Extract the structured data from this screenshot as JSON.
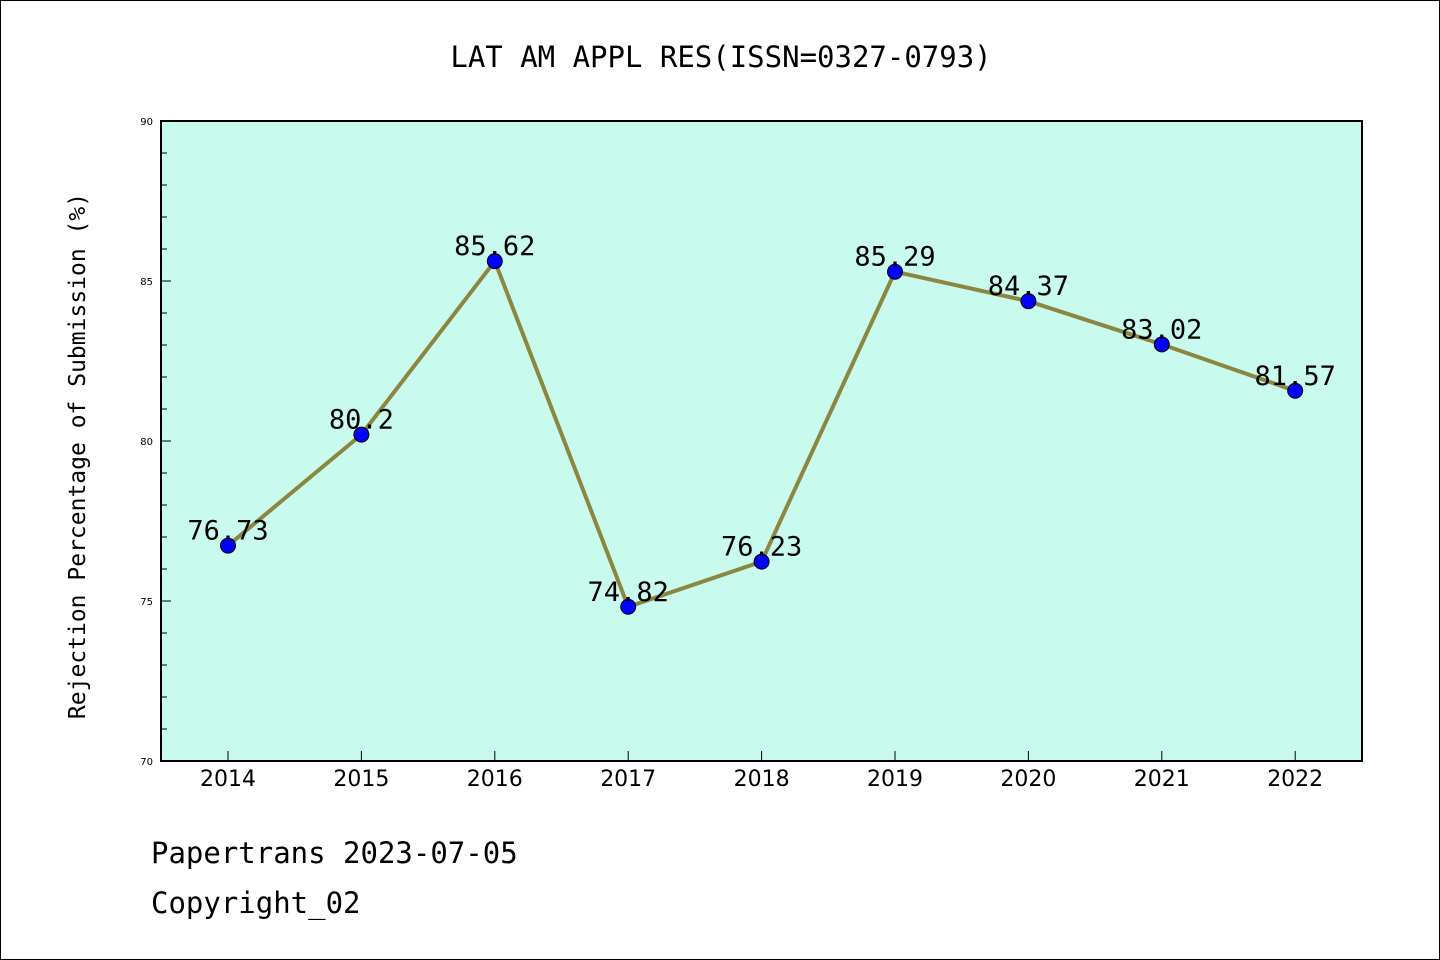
{
  "chart_data": {
    "type": "line",
    "title": "LAT AM APPL RES(ISSN=0327-0793)",
    "xlabel": "",
    "ylabel": "Rejection Percentage of Submission (%)",
    "categories": [
      "2014",
      "2015",
      "2016",
      "2017",
      "2018",
      "2019",
      "2020",
      "2021",
      "2022"
    ],
    "series": [
      {
        "values": [
          76.73,
          80.2,
          85.62,
          74.82,
          76.23,
          85.29,
          84.37,
          83.02,
          81.57
        ],
        "labels": [
          "76.73",
          "80.2",
          "85.62",
          "74.82",
          "76.23",
          "85.29",
          "84.37",
          "83.02",
          "81.57"
        ]
      }
    ],
    "ylim": [
      70,
      90
    ],
    "yticks": [
      "70",
      "75",
      "80",
      "85",
      "90"
    ],
    "grid": false,
    "colors": {
      "plot_background": "#c8fbee",
      "line": "#8b8640",
      "marker": "#0000ff"
    }
  },
  "footer": {
    "line1": "Papertrans 2023-07-05",
    "line2": "Copyright_02"
  }
}
